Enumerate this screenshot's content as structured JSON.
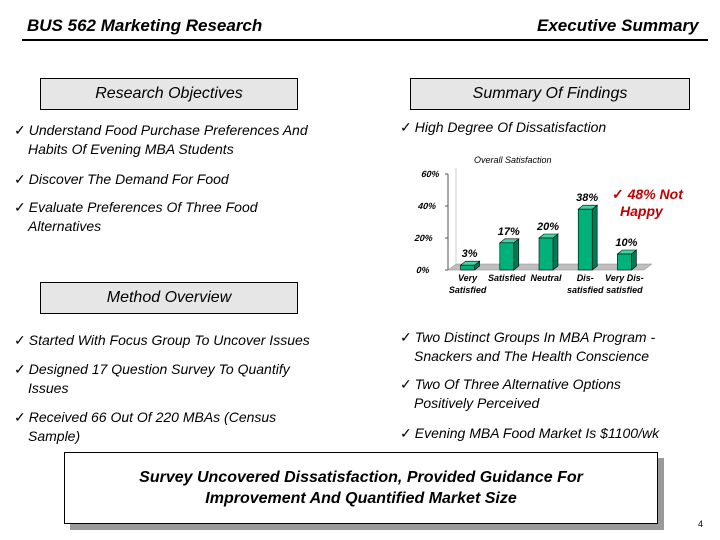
{
  "header": {
    "title": "BUS 562 Marketing Research",
    "section": "Executive Summary"
  },
  "objectives": {
    "heading": "Research Objectives",
    "items": [
      [
        "Understand Food Purchase Preferences And",
        "Habits Of Evening MBA Students"
      ],
      [
        "Discover The Demand For Food"
      ],
      [
        "Evaluate Preferences Of Three Food",
        "Alternatives"
      ]
    ]
  },
  "findings": {
    "heading": "Summary Of Findings",
    "items": [
      [
        "High Degree Of Dissatisfaction"
      ],
      [
        "Two Distinct Groups In MBA Program -",
        "Snackers and The Health Conscience"
      ],
      [
        "Two Of Three Alternative Options",
        "Positively Perceived"
      ],
      [
        "Evening MBA Food Market Is $1100/wk"
      ]
    ]
  },
  "method": {
    "heading": "Method Overview",
    "items": [
      [
        "Started With Focus Group To Uncover Issues"
      ],
      [
        "Designed 17 Question Survey To Quantify",
        "Issues"
      ],
      [
        "Received 66 Out Of 220 MBAs (Census",
        "Sample)"
      ]
    ]
  },
  "callout": {
    "check": "✓",
    "lines": [
      "48% Not",
      "Happy"
    ]
  },
  "chart_data": {
    "type": "bar",
    "title": "Overall Satisfaction",
    "categories": [
      [
        "Very",
        "Satisfied"
      ],
      [
        "Satisfied"
      ],
      [
        "Neutral"
      ],
      [
        "Dis-",
        "satisfied"
      ],
      [
        "Very Dis-",
        "satisfied"
      ]
    ],
    "values": [
      3,
      17,
      20,
      38,
      10
    ],
    "value_labels": [
      "3%",
      "17%",
      "20%",
      "38%",
      "10%"
    ],
    "yticks": [
      "0%",
      "20%",
      "40%",
      "60%"
    ],
    "ylim": [
      0,
      60
    ],
    "bar_color": "#00b27a",
    "grid": false,
    "legend": "none"
  },
  "conclusion": {
    "lines": [
      "Survey Uncovered Dissatisfaction, Provided Guidance For",
      "Improvement And Quantified Market Size"
    ]
  },
  "page_number": "4",
  "check_mark": "✓"
}
